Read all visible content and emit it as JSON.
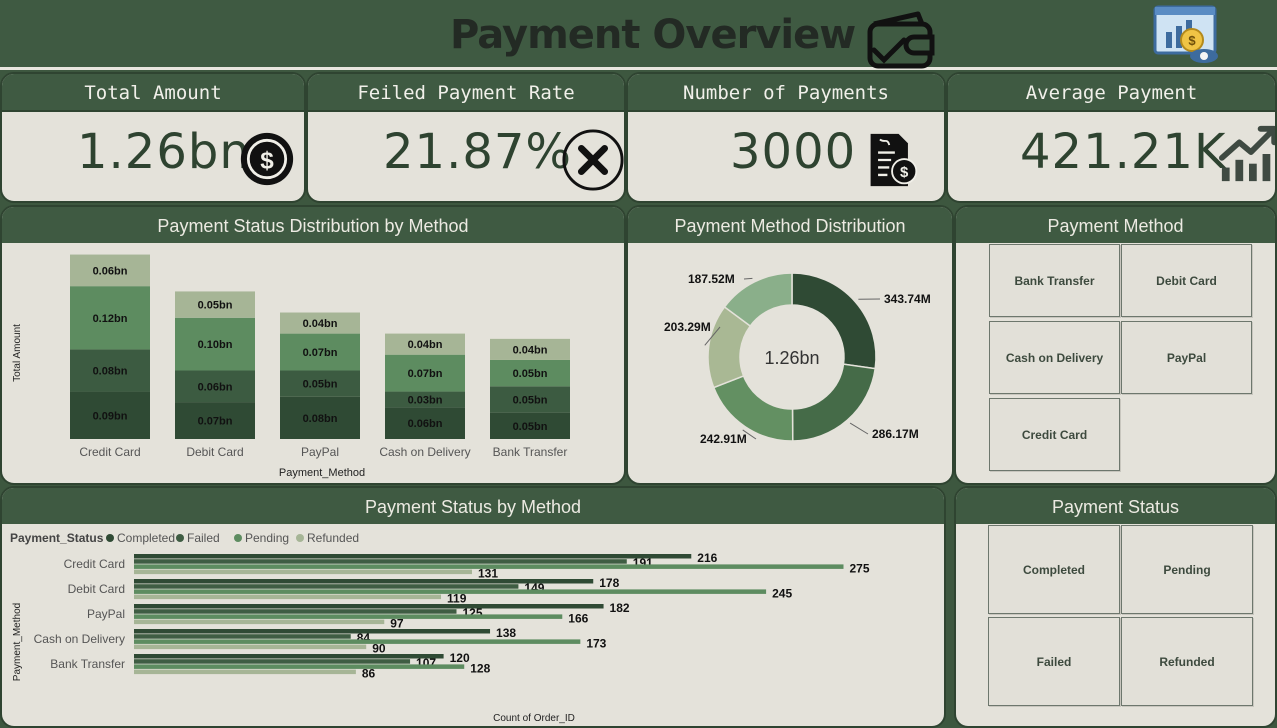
{
  "header": {
    "title": "Payment Overview"
  },
  "kpis": [
    {
      "label": "Total Amount",
      "value": "1.26bn",
      "icon": "dollar-coin-icon"
    },
    {
      "label": "Feiled Payment Rate",
      "value": "21.87%",
      "icon": "x-circle-icon"
    },
    {
      "label": "Number of Payments",
      "value": "3000",
      "icon": "invoice-icon"
    },
    {
      "label": "Average Payment",
      "value": "421.21K",
      "icon": "growth-chart-icon"
    }
  ],
  "status_by_method_stacked": {
    "title": "Payment Status Distribution by Method",
    "chart_data": {
      "type": "bar",
      "stacked": true,
      "categories": [
        "Credit Card",
        "Debit Card",
        "PayPal",
        "Cash on Delivery",
        "Bank Transfer"
      ],
      "series": [
        {
          "values": [
            0.09,
            0.07,
            0.08,
            0.06,
            0.05
          ],
          "labels": [
            "0.09bn",
            "0.07bn",
            "0.08bn",
            "0.06bn",
            "0.05bn"
          ],
          "color": "#2f4a34"
        },
        {
          "values": [
            0.08,
            0.06,
            0.05,
            0.03,
            0.05
          ],
          "labels": [
            "0.08bn",
            "0.06bn",
            "0.05bn",
            "0.03bn",
            "0.05bn"
          ],
          "color": "#3c5b41"
        },
        {
          "values": [
            0.12,
            0.1,
            0.07,
            0.07,
            0.05
          ],
          "labels": [
            "0.12bn",
            "0.10bn",
            "0.07bn",
            "0.07bn",
            "0.05bn"
          ],
          "color": "#5d8c60"
        },
        {
          "values": [
            0.06,
            0.05,
            0.04,
            0.04,
            0.04
          ],
          "labels": [
            "0.06bn",
            "0.05bn",
            "0.04bn",
            "0.04bn",
            "0.04bn"
          ],
          "color": "#a6b596"
        }
      ],
      "xlabel": "Payment_Method",
      "ylabel": "Total Amount"
    }
  },
  "method_distribution": {
    "title": "Payment Method Distribution",
    "center_label": "1.26bn",
    "chart_data": {
      "type": "pie",
      "donut": true,
      "values": [
        343.74,
        286.17,
        242.91,
        203.29,
        187.52
      ],
      "labels": [
        "343.74M",
        "286.17M",
        "242.91M",
        "203.29M",
        "187.52M"
      ],
      "colors": [
        "#2f4a34",
        "#456b48",
        "#639062",
        "#a9b894",
        "#8aaf8a"
      ]
    }
  },
  "method_slicer": {
    "title": "Payment Method",
    "options": [
      "Bank Transfer",
      "Debit Card",
      "Cash on Delivery",
      "PayPal",
      "Credit Card"
    ]
  },
  "status_by_method_bars": {
    "title": "Payment Status by Method",
    "legend_title": "Payment_Status",
    "chart_data": {
      "type": "bar",
      "orientation": "horizontal",
      "categories": [
        "Credit Card",
        "Debit Card",
        "PayPal",
        "Cash on Delivery",
        "Bank Transfer"
      ],
      "series": [
        {
          "name": "Completed",
          "values": [
            216,
            178,
            182,
            138,
            120
          ],
          "color": "#2f4a34"
        },
        {
          "name": "Failed",
          "values": [
            191,
            149,
            125,
            84,
            107
          ],
          "color": "#3f5d43"
        },
        {
          "name": "Pending",
          "values": [
            275,
            245,
            166,
            173,
            128
          ],
          "color": "#5d8c60"
        },
        {
          "name": "Refunded",
          "values": [
            131,
            119,
            97,
            90,
            86
          ],
          "color": "#a6b596"
        }
      ],
      "xlabel": "Count of Order_ID",
      "ylabel": "Payment_Method",
      "xlim": [
        0,
        300
      ]
    }
  },
  "status_slicer": {
    "title": "Payment Status",
    "options": [
      "Completed",
      "Pending",
      "Failed",
      "Refunded"
    ]
  }
}
